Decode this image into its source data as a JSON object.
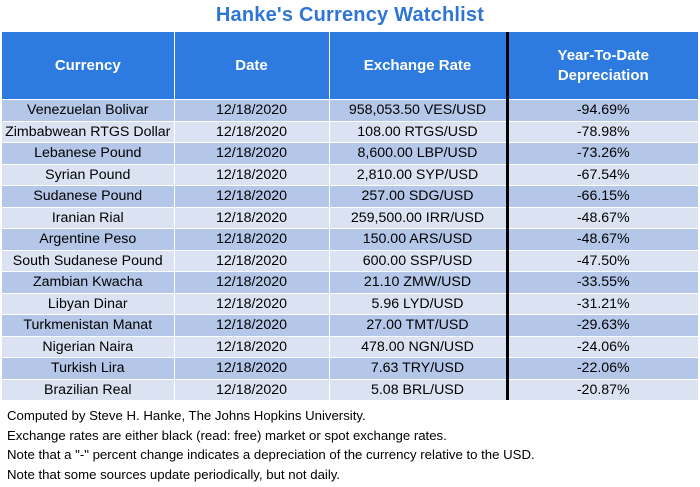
{
  "title": "Hanke's Currency Watchlist",
  "table": {
    "headers": [
      "Currency",
      "Date",
      "Exchange Rate",
      "Year-To-Date Depreciation"
    ],
    "rows": [
      [
        "Venezuelan Bolivar",
        "12/18/2020",
        "958,053.50 VES/USD",
        "-94.69%"
      ],
      [
        "Zimbabwean RTGS Dollar",
        "12/18/2020",
        "108.00 RTGS/USD",
        "-78.98%"
      ],
      [
        "Lebanese Pound",
        "12/18/2020",
        "8,600.00 LBP/USD",
        "-73.26%"
      ],
      [
        "Syrian Pound",
        "12/18/2020",
        "2,810.00 SYP/USD",
        "-67.54%"
      ],
      [
        "Sudanese Pound",
        "12/18/2020",
        "257.00 SDG/USD",
        "-66.15%"
      ],
      [
        "Iranian Rial",
        "12/18/2020",
        "259,500.00 IRR/USD",
        "-48.67%"
      ],
      [
        "Argentine Peso",
        "12/18/2020",
        "150.00 ARS/USD",
        "-48.67%"
      ],
      [
        "South Sudanese Pound",
        "12/18/2020",
        "600.00 SSP/USD",
        "-47.50%"
      ],
      [
        "Zambian Kwacha",
        "12/18/2020",
        "21.10 ZMW/USD",
        "-33.55%"
      ],
      [
        "Libyan Dinar",
        "12/18/2020",
        "5.96 LYD/USD",
        "-31.21%"
      ],
      [
        "Turkmenistan Manat",
        "12/18/2020",
        "27.00 TMT/USD",
        "-29.63%"
      ],
      [
        "Nigerian Naira",
        "12/18/2020",
        "478.00 NGN/USD",
        "-24.06%"
      ],
      [
        "Turkish Lira",
        "12/18/2020",
        "7.63 TRY/USD",
        "-22.06%"
      ],
      [
        "Brazilian Real",
        "12/18/2020",
        "5.08 BRL/USD",
        "-20.87%"
      ]
    ]
  },
  "notes": [
    "Computed by Steve H. Hanke, The Johns Hopkins University.",
    "Exchange rates are either black (read: free) market or spot exchange rates.",
    "Note that a \"-\" percent change indicates a depreciation of the currency relative to the USD.",
    "Note that some sources update periodically, but not daily."
  ],
  "colors": {
    "title": "#2e75d6",
    "header_bg": "#2d7be0",
    "row_dark": "#b5c7e8",
    "row_light": "#dbe3f3",
    "divider": "#000000"
  }
}
